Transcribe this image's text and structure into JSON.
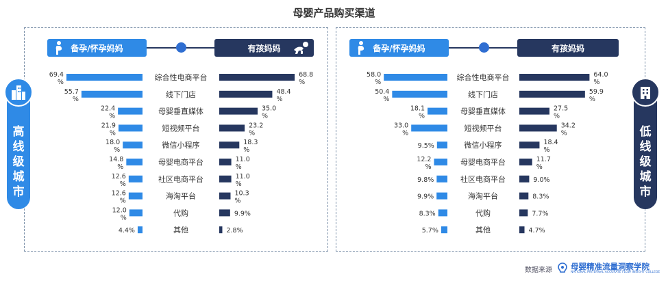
{
  "title": "母婴产品购买渠道",
  "colors": {
    "pregnant": "#2f8ae6",
    "withkid": "#26375f",
    "accent": "#2f6ed1"
  },
  "legend": {
    "pregnant": "备孕/怀孕妈妈",
    "withkid": "有孩妈妈"
  },
  "side_labels": {
    "high": "高线级城市",
    "low": "低线级城市"
  },
  "source": {
    "label": "数据来源",
    "name": "母婴精准流量洞察学院",
    "subtitle": "NATIONAL MATERNAL ACCURATE FLOW INSIGHT COLLEGE"
  },
  "chart_data": [
    {
      "type": "bar",
      "title": "高线级城市",
      "categories": [
        "综合性电商平台",
        "线下门店",
        "母婴垂直媒体",
        "短视频平台",
        "微信小程序",
        "母婴电商平台",
        "社区电商平台",
        "海淘平台",
        "代购",
        "其他"
      ],
      "series": [
        {
          "name": "备孕/怀孕妈妈",
          "values": [
            69.4,
            55.7,
            22.4,
            21.9,
            18.0,
            14.8,
            12.6,
            12.6,
            12.0,
            4.4
          ],
          "labels": [
            "69.4\n%",
            "55.7\n%",
            "22.4\n%",
            "21.9\n%",
            "18.0\n%",
            "14.8\n%",
            "12.6\n%",
            "12.6\n%",
            "12.0\n%",
            "4.4%"
          ]
        },
        {
          "name": "有孩妈妈",
          "values": [
            68.8,
            48.4,
            35.0,
            23.2,
            18.3,
            11.0,
            11.0,
            10.3,
            9.9,
            2.8
          ],
          "labels": [
            "68.8\n%",
            "48.4\n%",
            "35.0\n%",
            "23.2\n%",
            "18.3\n%",
            "11.0\n%",
            "11.0\n%",
            "10.3\n%",
            "9.9%",
            "2.8%"
          ]
        }
      ],
      "unit": "%"
    },
    {
      "type": "bar",
      "title": "低线级城市",
      "categories": [
        "综合性电商平台",
        "线下门店",
        "母婴垂直媒体",
        "短视频平台",
        "微信小程序",
        "母婴电商平台",
        "社区电商平台",
        "海淘平台",
        "代购",
        "其他"
      ],
      "series": [
        {
          "name": "备孕/怀孕妈妈",
          "values": [
            58.0,
            50.4,
            18.1,
            33.0,
            9.5,
            12.2,
            9.8,
            9.9,
            8.3,
            5.7
          ],
          "labels": [
            "58.0\n%",
            "50.4\n%",
            "18.1\n%",
            "33.0\n%",
            "9.5%",
            "12.2\n%",
            "9.8%",
            "9.9%",
            "8.3%",
            "5.7%"
          ]
        },
        {
          "name": "有孩妈妈",
          "values": [
            64.0,
            59.9,
            27.5,
            34.2,
            18.4,
            11.7,
            9.0,
            8.3,
            7.7,
            4.7
          ],
          "labels": [
            "64.0\n%",
            "59.9\n%",
            "27.5\n%",
            "34.2\n%",
            "18.4\n%",
            "11.7\n%",
            "9.0%",
            "8.3%",
            "7.7%",
            "4.7%"
          ]
        }
      ],
      "unit": "%"
    }
  ]
}
